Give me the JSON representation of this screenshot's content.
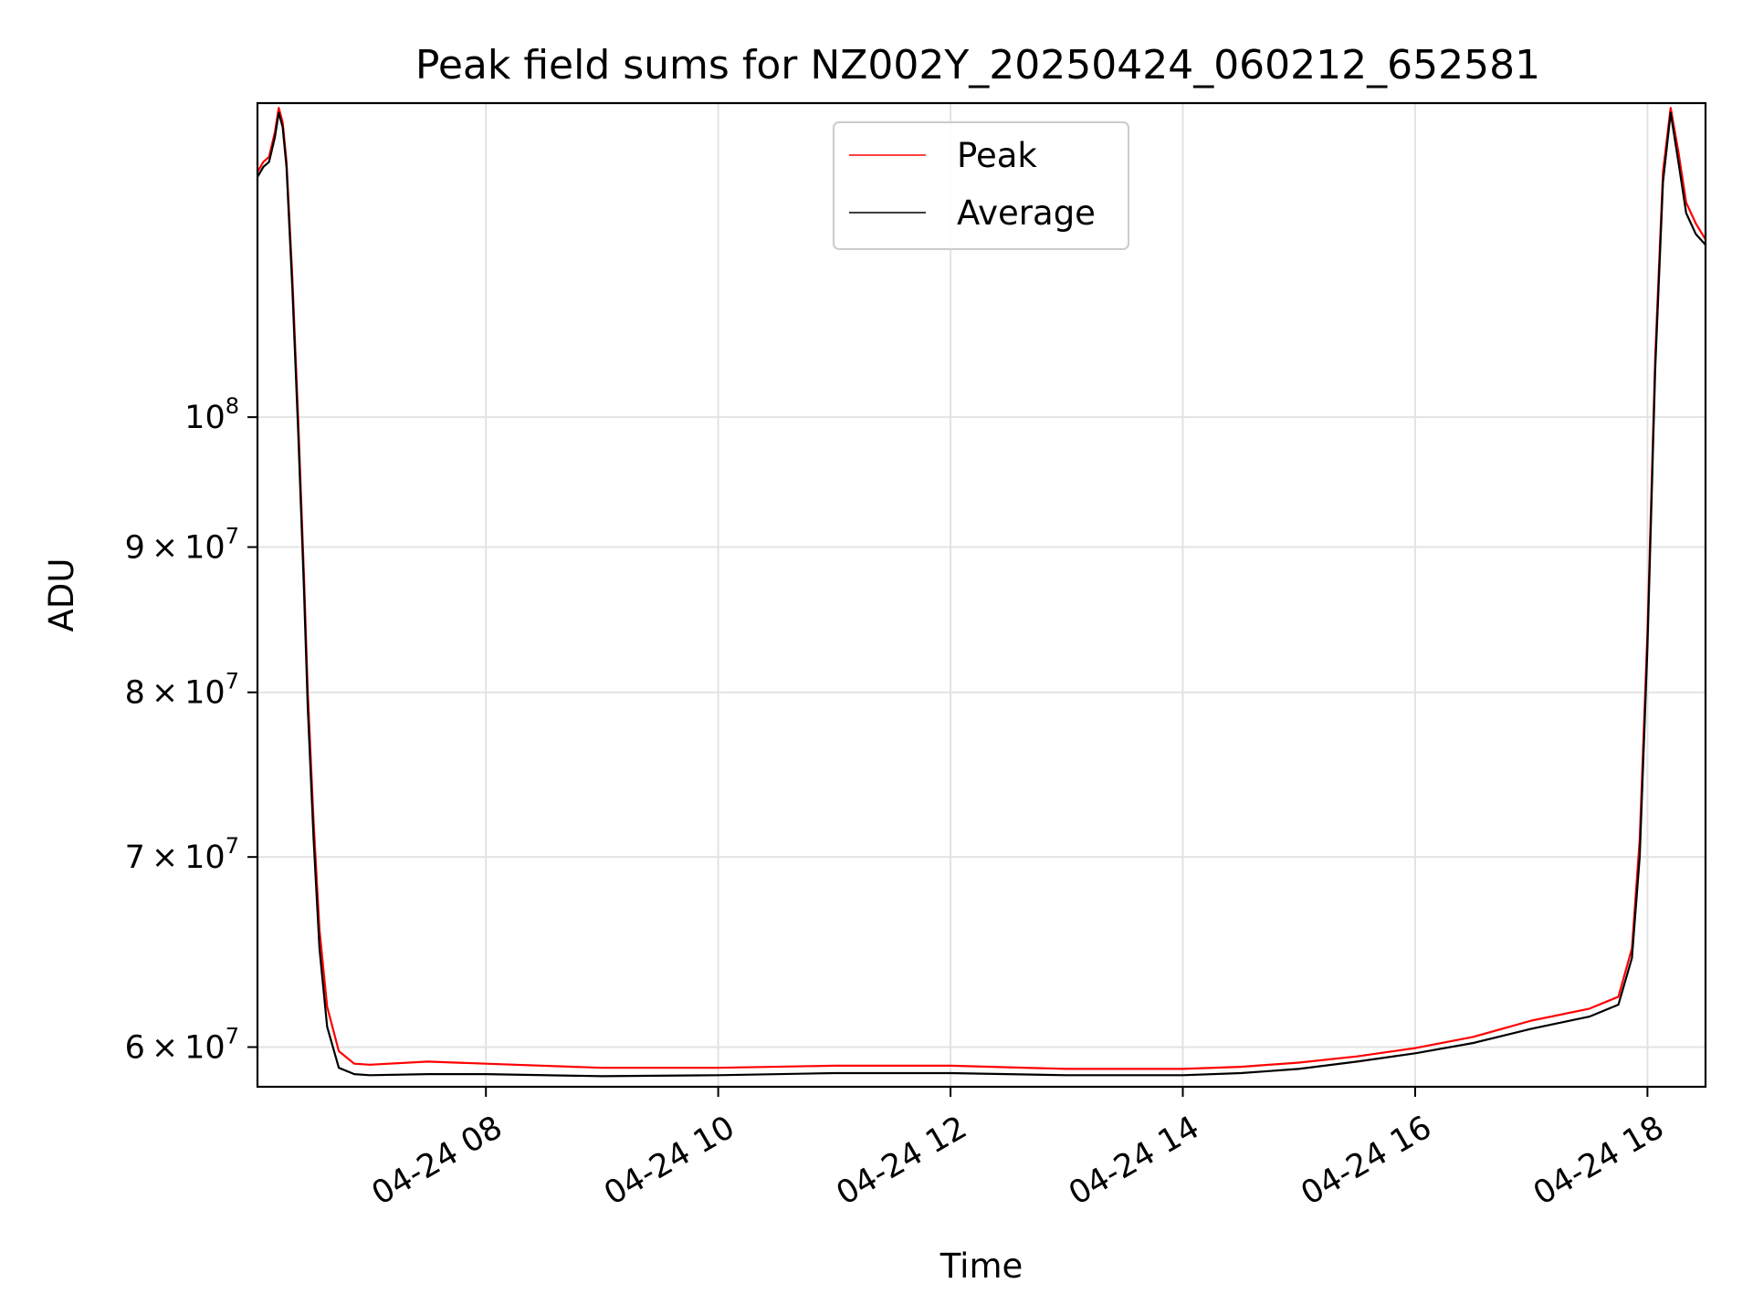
{
  "chart_data": {
    "type": "line",
    "title": "Peak field sums for NZ002Y_20250424_060212_652581",
    "xlabel": "Time",
    "ylabel": "ADU",
    "y_scale": "log",
    "ylim": [
      58100000,
      129000000
    ],
    "xlim": [
      "2025-04-24 06:02",
      "2025-04-24 18:30"
    ],
    "grid": true,
    "legend_position": "top-center",
    "x_ticks": [
      {
        "value": "2025-04-24 08:00",
        "label": "04-24 08"
      },
      {
        "value": "2025-04-24 10:00",
        "label": "04-24 10"
      },
      {
        "value": "2025-04-24 12:00",
        "label": "04-24 12"
      },
      {
        "value": "2025-04-24 14:00",
        "label": "04-24 14"
      },
      {
        "value": "2025-04-24 16:00",
        "label": "04-24 16"
      },
      {
        "value": "2025-04-24 18:00",
        "label": "04-24 18"
      }
    ],
    "y_ticks": [
      {
        "value": 60000000,
        "mantissa": "6",
        "exponent": "7"
      },
      {
        "value": 70000000,
        "mantissa": "7",
        "exponent": "7"
      },
      {
        "value": 80000000,
        "mantissa": "8",
        "exponent": "7"
      },
      {
        "value": 90000000,
        "mantissa": "9",
        "exponent": "7"
      },
      {
        "value": 100000000,
        "mantissa": "",
        "exponent": "8"
      }
    ],
    "series": [
      {
        "name": "Peak",
        "color": "#ff0000",
        "points": [
          [
            "2025-04-24 06:02",
            122000000
          ],
          [
            "2025-04-24 06:05",
            123000000
          ],
          [
            "2025-04-24 06:08",
            123500000
          ],
          [
            "2025-04-24 06:11",
            126000000
          ],
          [
            "2025-04-24 06:13",
            128500000
          ],
          [
            "2025-04-24 06:15",
            127000000
          ],
          [
            "2025-04-24 06:17",
            123000000
          ],
          [
            "2025-04-24 06:20",
            112000000
          ],
          [
            "2025-04-24 06:23",
            100000000
          ],
          [
            "2025-04-24 06:26",
            88000000
          ],
          [
            "2025-04-24 06:28",
            80000000
          ],
          [
            "2025-04-24 06:31",
            72000000
          ],
          [
            "2025-04-24 06:34",
            66000000
          ],
          [
            "2025-04-24 06:38",
            62000000
          ],
          [
            "2025-04-24 06:44",
            59800000
          ],
          [
            "2025-04-24 06:52",
            59200000
          ],
          [
            "2025-04-24 07:00",
            59150000
          ],
          [
            "2025-04-24 07:30",
            59300000
          ],
          [
            "2025-04-24 08:00",
            59200000
          ],
          [
            "2025-04-24 09:00",
            59000000
          ],
          [
            "2025-04-24 10:00",
            59000000
          ],
          [
            "2025-04-24 11:00",
            59100000
          ],
          [
            "2025-04-24 12:00",
            59100000
          ],
          [
            "2025-04-24 13:00",
            58950000
          ],
          [
            "2025-04-24 14:00",
            58950000
          ],
          [
            "2025-04-24 14:30",
            59050000
          ],
          [
            "2025-04-24 15:00",
            59250000
          ],
          [
            "2025-04-24 15:30",
            59550000
          ],
          [
            "2025-04-24 16:00",
            59950000
          ],
          [
            "2025-04-24 16:30",
            60500000
          ],
          [
            "2025-04-24 17:00",
            61300000
          ],
          [
            "2025-04-24 17:30",
            61900000
          ],
          [
            "2025-04-24 17:45",
            62500000
          ],
          [
            "2025-04-24 17:52",
            65000000
          ],
          [
            "2025-04-24 17:56",
            71000000
          ],
          [
            "2025-04-24 18:00",
            84000000
          ],
          [
            "2025-04-24 18:04",
            105000000
          ],
          [
            "2025-04-24 18:08",
            122000000
          ],
          [
            "2025-04-24 18:12",
            128500000
          ],
          [
            "2025-04-24 18:16",
            124000000
          ],
          [
            "2025-04-24 18:20",
            119000000
          ],
          [
            "2025-04-24 18:25",
            117000000
          ],
          [
            "2025-04-24 18:30",
            115500000
          ]
        ]
      },
      {
        "name": "Average",
        "color": "#000000",
        "points": [
          [
            "2025-04-24 06:02",
            121500000
          ],
          [
            "2025-04-24 06:05",
            122500000
          ],
          [
            "2025-04-24 06:08",
            123000000
          ],
          [
            "2025-04-24 06:11",
            125500000
          ],
          [
            "2025-04-24 06:13",
            128000000
          ],
          [
            "2025-04-24 06:15",
            126500000
          ],
          [
            "2025-04-24 06:17",
            122500000
          ],
          [
            "2025-04-24 06:20",
            111000000
          ],
          [
            "2025-04-24 06:23",
            99000000
          ],
          [
            "2025-04-24 06:26",
            87000000
          ],
          [
            "2025-04-24 06:28",
            79000000
          ],
          [
            "2025-04-24 06:31",
            71000000
          ],
          [
            "2025-04-24 06:34",
            65000000
          ],
          [
            "2025-04-24 06:38",
            61000000
          ],
          [
            "2025-04-24 06:44",
            59000000
          ],
          [
            "2025-04-24 06:52",
            58700000
          ],
          [
            "2025-04-24 07:00",
            58650000
          ],
          [
            "2025-04-24 07:30",
            58700000
          ],
          [
            "2025-04-24 08:00",
            58700000
          ],
          [
            "2025-04-24 09:00",
            58600000
          ],
          [
            "2025-04-24 10:00",
            58650000
          ],
          [
            "2025-04-24 11:00",
            58750000
          ],
          [
            "2025-04-24 12:00",
            58750000
          ],
          [
            "2025-04-24 13:00",
            58650000
          ],
          [
            "2025-04-24 14:00",
            58650000
          ],
          [
            "2025-04-24 14:30",
            58750000
          ],
          [
            "2025-04-24 15:00",
            58950000
          ],
          [
            "2025-04-24 15:30",
            59300000
          ],
          [
            "2025-04-24 16:00",
            59700000
          ],
          [
            "2025-04-24 16:30",
            60200000
          ],
          [
            "2025-04-24 17:00",
            60900000
          ],
          [
            "2025-04-24 17:30",
            61500000
          ],
          [
            "2025-04-24 17:45",
            62100000
          ],
          [
            "2025-04-24 17:52",
            64500000
          ],
          [
            "2025-04-24 17:56",
            70000000
          ],
          [
            "2025-04-24 18:00",
            83000000
          ],
          [
            "2025-04-24 18:04",
            104000000
          ],
          [
            "2025-04-24 18:08",
            121000000
          ],
          [
            "2025-04-24 18:12",
            128000000
          ],
          [
            "2025-04-24 18:16",
            123000000
          ],
          [
            "2025-04-24 18:20",
            118000000
          ],
          [
            "2025-04-24 18:25",
            116000000
          ],
          [
            "2025-04-24 18:30",
            115000000
          ]
        ]
      }
    ]
  }
}
